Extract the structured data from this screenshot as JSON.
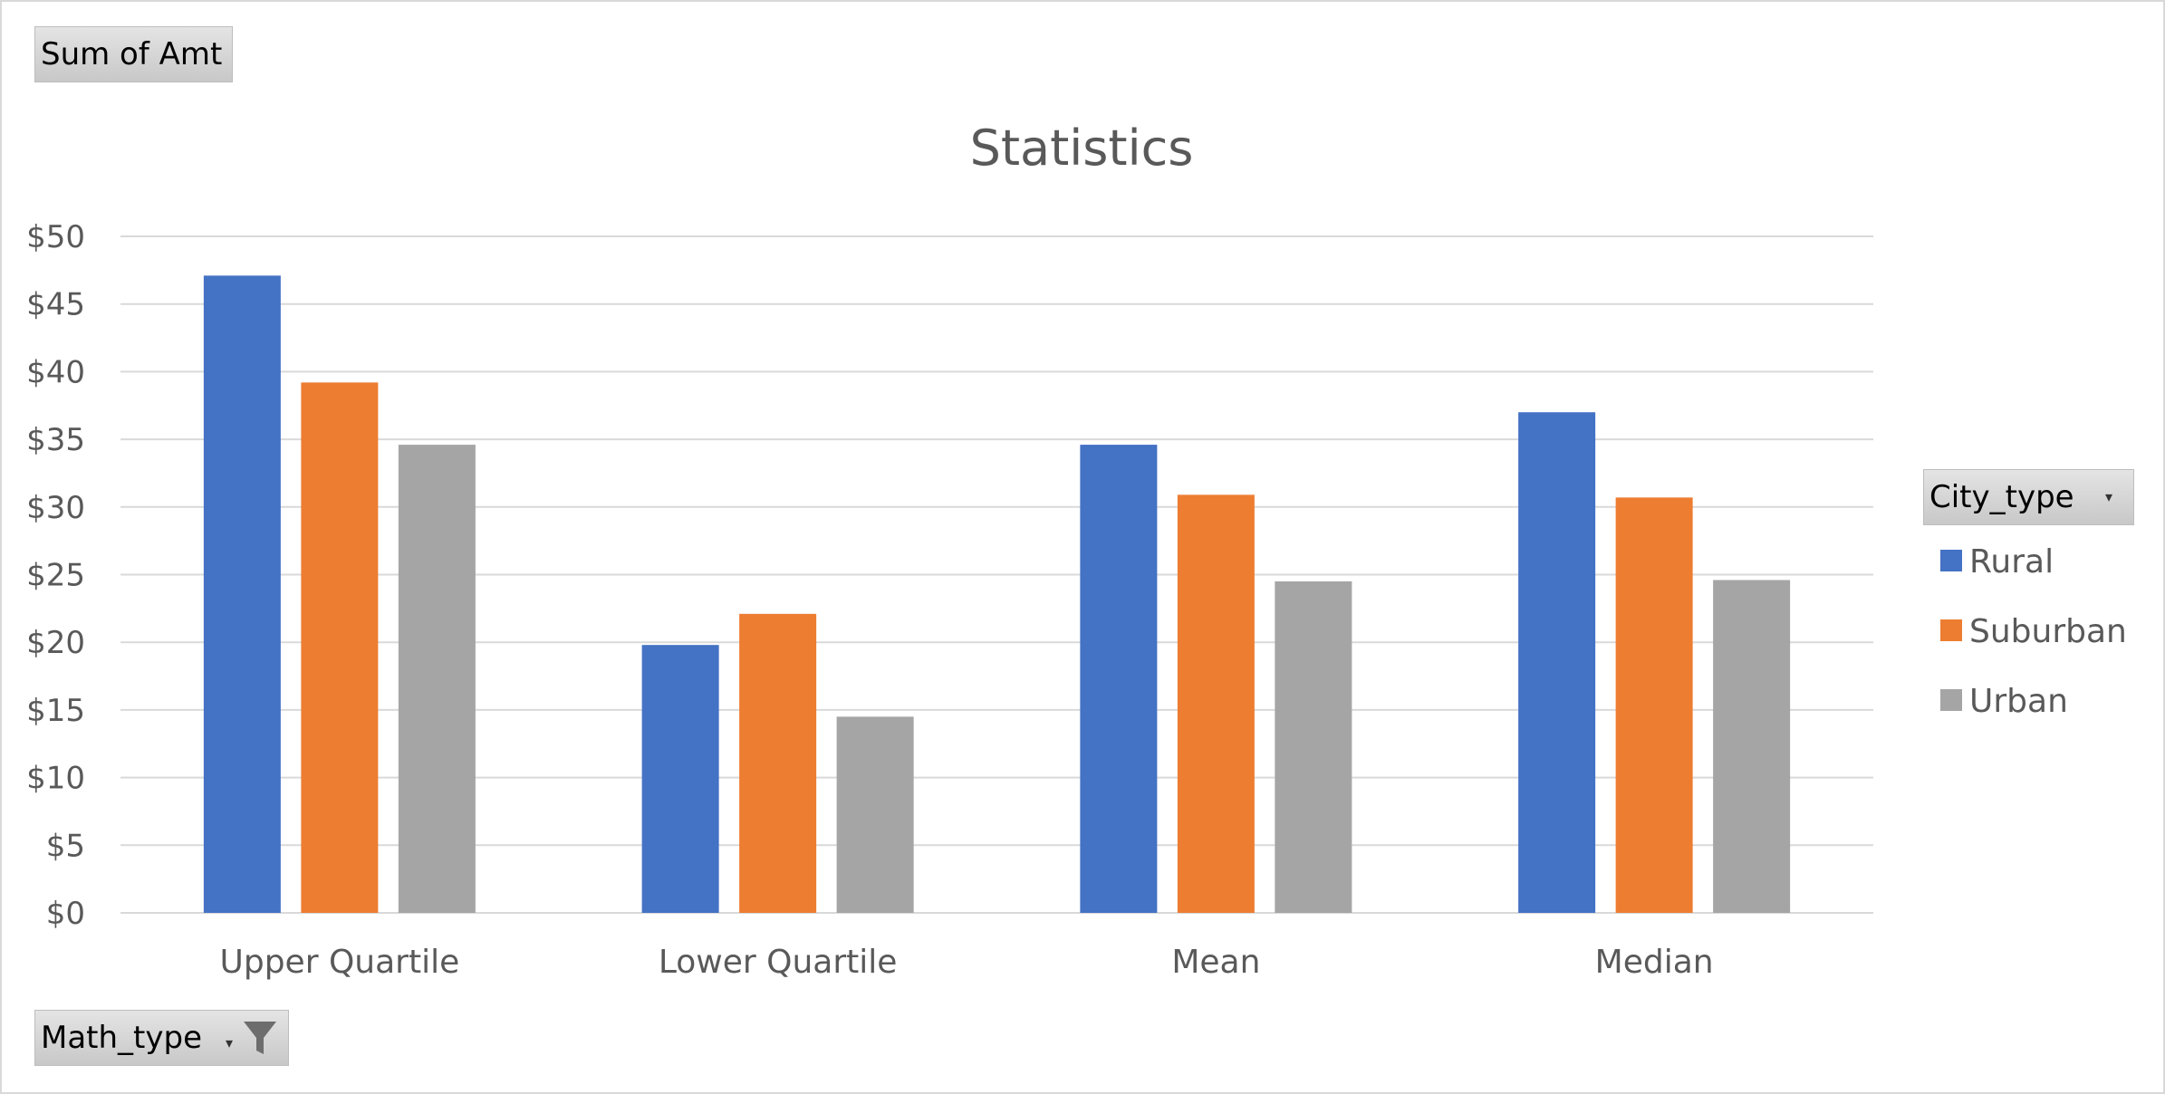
{
  "pivot_buttons": {
    "values_field": "Sum of Amt",
    "axis_field": "Math_type",
    "legend_field": "City_type"
  },
  "icons": {
    "filter": "filter-funnel-icon",
    "dropdown": "dropdown-arrow-icon"
  },
  "chart_data": {
    "type": "bar",
    "title": "Statistics",
    "categories": [
      "Upper Quartile",
      "Lower Quartile",
      "Mean",
      "Median"
    ],
    "series": [
      {
        "name": "Rural",
        "color": "#4472C4",
        "values": [
          47.1,
          19.8,
          34.6,
          37.0
        ]
      },
      {
        "name": "Suburban",
        "color": "#ED7D31",
        "values": [
          39.2,
          22.1,
          30.9,
          30.7
        ]
      },
      {
        "name": "Urban",
        "color": "#A5A5A5",
        "values": [
          34.6,
          14.5,
          24.5,
          24.6
        ]
      }
    ],
    "ylim": [
      0,
      50
    ],
    "yticks": [
      0,
      5,
      10,
      15,
      20,
      25,
      30,
      35,
      40,
      45,
      50
    ],
    "ytick_labels": [
      "$0",
      "$5",
      "$10",
      "$15",
      "$20",
      "$25",
      "$30",
      "$35",
      "$40",
      "$45",
      "$50"
    ],
    "grid": true,
    "legend_position": "right"
  }
}
